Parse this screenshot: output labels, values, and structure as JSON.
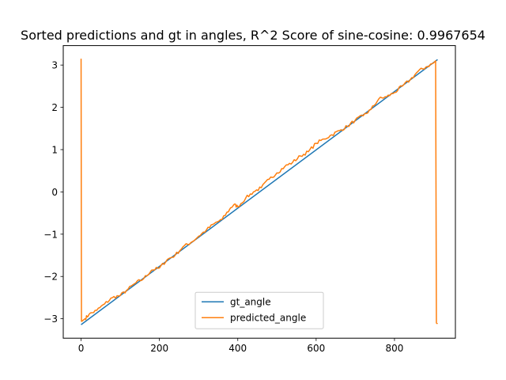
{
  "chart_data": {
    "type": "line",
    "title": "Sorted predictions and gt in angles,  R^2 Score of sine-cosine: 0.9967654",
    "xlabel": "",
    "ylabel": "",
    "xlim": [
      -45.5,
      955.5
    ],
    "ylim": [
      -3.46,
      3.46
    ],
    "x_ticks": [
      0,
      200,
      400,
      600,
      800
    ],
    "x_tick_labels": [
      "0",
      "200",
      "400",
      "600",
      "800"
    ],
    "y_ticks": [
      -3,
      -2,
      -1,
      0,
      1,
      2,
      3
    ],
    "y_tick_labels": [
      "−3",
      "−2",
      "−1",
      "0",
      "1",
      "2",
      "3"
    ],
    "grid": false,
    "legend": "lower center",
    "n_points": 911,
    "series": [
      {
        "name": "gt_angle",
        "color": "#1f77b4",
        "x": [
          0,
          910
        ],
        "y": [
          -3.14,
          3.13
        ]
      },
      {
        "name": "predicted_angle",
        "color": "#ff7f0e",
        "x": [
          0,
          1,
          2,
          10,
          20,
          40,
          60,
          80,
          100,
          120,
          140,
          160,
          180,
          200,
          220,
          240,
          260,
          280,
          300,
          320,
          340,
          360,
          380,
          390,
          400,
          420,
          440,
          460,
          480,
          500,
          520,
          540,
          560,
          580,
          600,
          620,
          640,
          660,
          680,
          700,
          720,
          740,
          760,
          780,
          800,
          820,
          840,
          860,
          880,
          900,
          905,
          907,
          910
        ],
        "y": [
          3.15,
          -3.06,
          -3.06,
          -3.0,
          -2.9,
          -2.8,
          -2.65,
          -2.5,
          -2.45,
          -2.3,
          -2.15,
          -2.05,
          -1.85,
          -1.8,
          -1.6,
          -1.5,
          -1.3,
          -1.2,
          -1.05,
          -0.9,
          -0.75,
          -0.65,
          -0.4,
          -0.3,
          -0.35,
          -0.15,
          0.0,
          0.1,
          0.3,
          0.45,
          0.6,
          0.7,
          0.85,
          0.95,
          1.15,
          1.25,
          1.35,
          1.45,
          1.55,
          1.7,
          1.8,
          1.95,
          2.2,
          2.25,
          2.35,
          2.5,
          2.65,
          2.85,
          2.95,
          3.05,
          3.1,
          -3.1,
          -3.12
        ]
      }
    ]
  }
}
